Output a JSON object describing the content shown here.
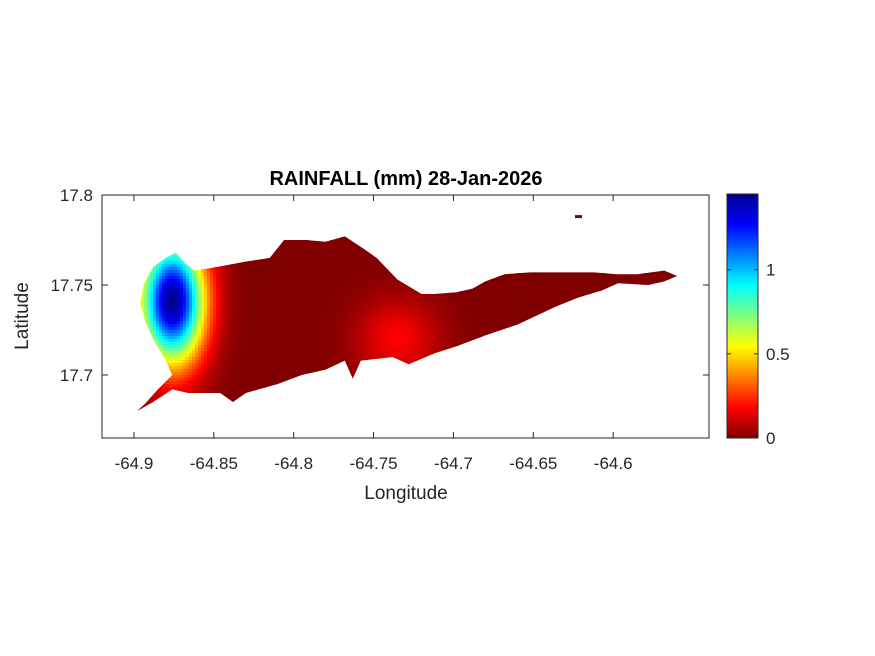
{
  "chart_data": {
    "type": "heatmap",
    "title": "RAINFALL (mm) 28-Jan-2026",
    "xlabel": "Longitude",
    "ylabel": "Latitude",
    "xlim": [
      -64.92,
      -64.54
    ],
    "ylim": [
      17.665,
      17.8
    ],
    "x_ticks": [
      -64.9,
      -64.85,
      -64.8,
      -64.75,
      -64.7,
      -64.65,
      -64.6
    ],
    "x_tick_labels": [
      "-64.9",
      "-64.85",
      "-64.8",
      "-64.75",
      "-64.7",
      "-64.65",
      "-64.6"
    ],
    "y_ticks": [
      17.7,
      17.75,
      17.8
    ],
    "y_tick_labels": [
      "17.7",
      "17.75",
      "17.8"
    ],
    "colorbar": {
      "colormap": "jet",
      "min": 0,
      "max": 1.45,
      "ticks": [
        0,
        0.5,
        1
      ],
      "tick_labels": [
        "0",
        "0.5",
        "1"
      ]
    },
    "rain_centers": [
      {
        "lon": -64.876,
        "lat": 17.741,
        "value": 1.45
      },
      {
        "lon": -64.735,
        "lat": 17.72,
        "value": 0.18
      }
    ],
    "grid": false,
    "land_outline": [
      [
        -64.898,
        17.68
      ],
      [
        -64.888,
        17.685
      ],
      [
        -64.876,
        17.692
      ],
      [
        -64.866,
        17.69
      ],
      [
        -64.846,
        17.69
      ],
      [
        -64.838,
        17.685
      ],
      [
        -64.83,
        17.69
      ],
      [
        -64.81,
        17.695
      ],
      [
        -64.795,
        17.7
      ],
      [
        -64.78,
        17.703
      ],
      [
        -64.768,
        17.708
      ],
      [
        -64.763,
        17.698
      ],
      [
        -64.758,
        17.708
      ],
      [
        -64.738,
        17.71
      ],
      [
        -64.728,
        17.706
      ],
      [
        -64.712,
        17.712
      ],
      [
        -64.698,
        17.716
      ],
      [
        -64.68,
        17.722
      ],
      [
        -64.66,
        17.728
      ],
      [
        -64.648,
        17.733
      ],
      [
        -64.636,
        17.738
      ],
      [
        -64.622,
        17.743
      ],
      [
        -64.607,
        17.747
      ],
      [
        -64.597,
        17.751
      ],
      [
        -64.578,
        17.75
      ],
      [
        -64.568,
        17.752
      ],
      [
        -64.56,
        17.755
      ],
      [
        -64.568,
        17.758
      ],
      [
        -64.585,
        17.756
      ],
      [
        -64.598,
        17.756
      ],
      [
        -64.612,
        17.757
      ],
      [
        -64.632,
        17.757
      ],
      [
        -64.652,
        17.757
      ],
      [
        -64.668,
        17.756
      ],
      [
        -64.68,
        17.752
      ],
      [
        -64.688,
        17.748
      ],
      [
        -64.698,
        17.746
      ],
      [
        -64.712,
        17.745
      ],
      [
        -64.72,
        17.745
      ],
      [
        -64.735,
        17.753
      ],
      [
        -64.748,
        17.765
      ],
      [
        -64.756,
        17.77
      ],
      [
        -64.768,
        17.777
      ],
      [
        -64.78,
        17.774
      ],
      [
        -64.793,
        17.775
      ],
      [
        -64.806,
        17.775
      ],
      [
        -64.815,
        17.765
      ],
      [
        -64.83,
        17.763
      ],
      [
        -64.848,
        17.76
      ],
      [
        -64.862,
        17.758
      ],
      [
        -64.868,
        17.762
      ],
      [
        -64.874,
        17.768
      ],
      [
        -64.88,
        17.765
      ],
      [
        -64.888,
        17.76
      ],
      [
        -64.894,
        17.75
      ],
      [
        -64.896,
        17.74
      ],
      [
        -64.893,
        17.73
      ],
      [
        -64.888,
        17.72
      ],
      [
        -64.88,
        17.708
      ],
      [
        -64.876,
        17.7
      ],
      [
        -64.885,
        17.692
      ],
      [
        -64.893,
        17.684
      ]
    ],
    "islet": [
      -64.622,
      17.788
    ]
  }
}
